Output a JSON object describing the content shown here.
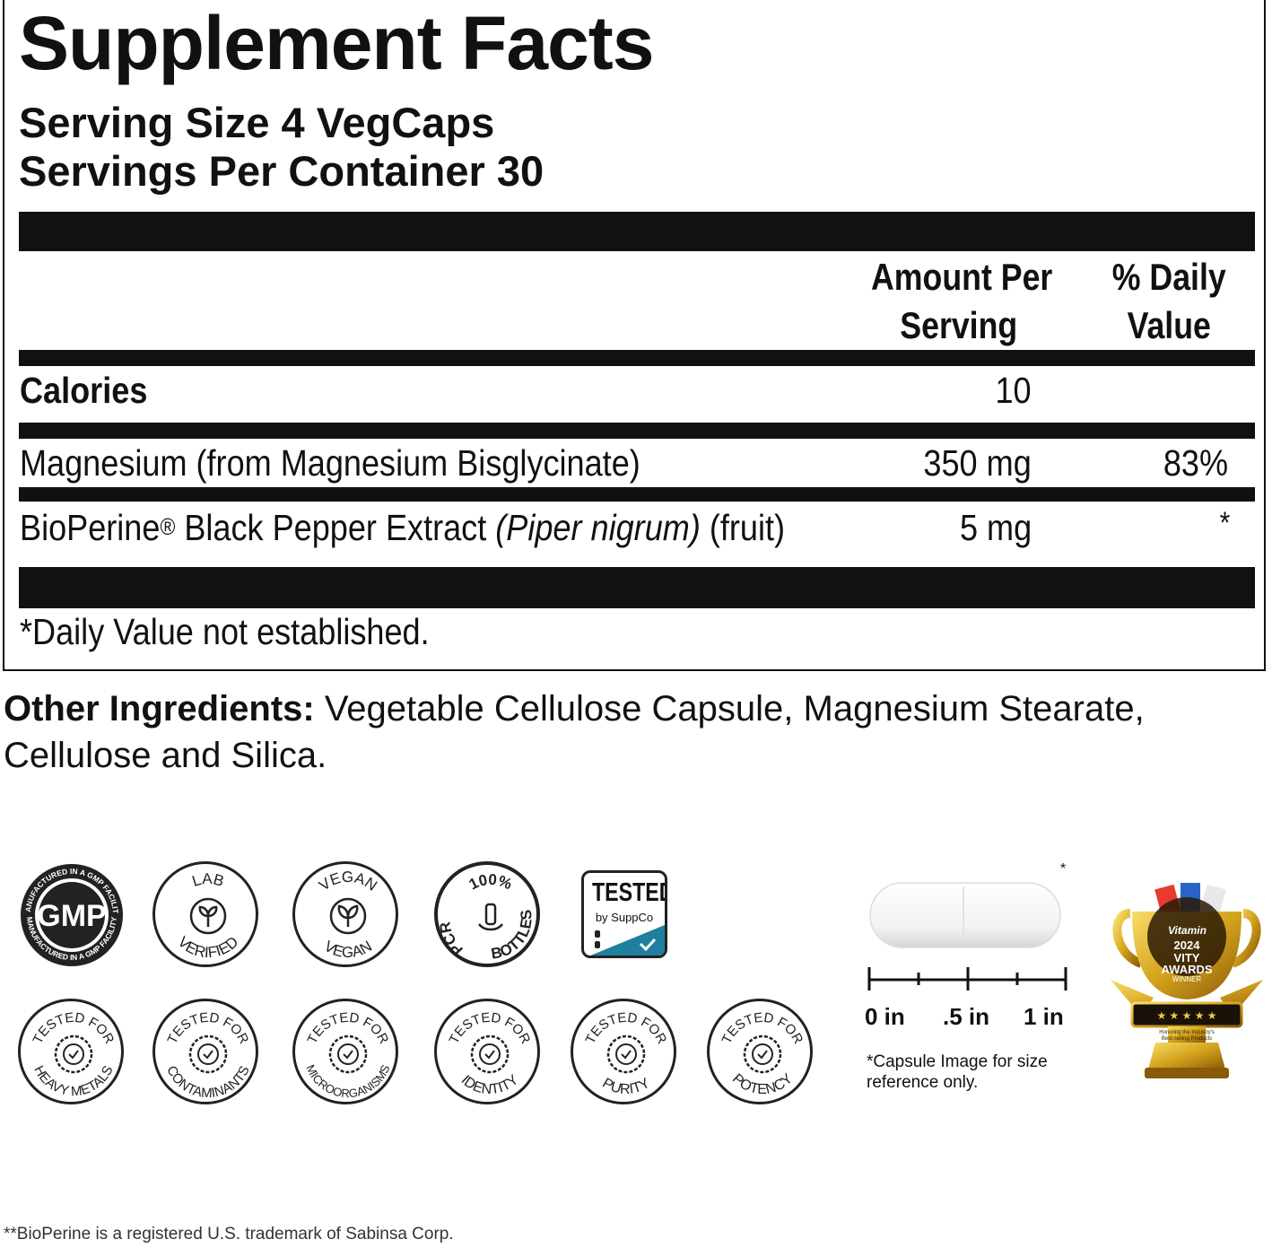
{
  "facts": {
    "title": "Supplement Facts",
    "serving_size": "Serving Size 4 VegCaps",
    "servings_per_container": "Servings Per Container 30",
    "col_amount_line1": "Amount Per",
    "col_amount_line2": "Serving",
    "col_dv_line1": "% Daily",
    "col_dv_line2": "Value",
    "rows": [
      {
        "name": "Calories",
        "amount": "10",
        "dv": ""
      },
      {
        "name": "Magnesium (from Magnesium Bisglycinate)",
        "amount": "350 mg",
        "dv": "83%"
      },
      {
        "name_prefix": "BioPerine",
        "reg_mark": "®",
        "name_mid": " Black Pepper Extract ",
        "name_italic": "(Piper nigrum)",
        "name_suffix": " (fruit)",
        "amount": "5 mg",
        "dv": "*"
      }
    ],
    "footnote": "*Daily Value not established."
  },
  "other_ingredients": {
    "label": "Other Ingredients:",
    "text": " Vegetable Cellulose Capsule, Magnesium Stearate, Cellulose and Silica."
  },
  "badges": {
    "gmp": {
      "center": "GMP",
      "ring_top": "MANUFACTURED IN A GMP FACILITY",
      "ring_bottom": "MANUFACTURED IN A GMP FACILITY",
      "icon": "gmp-seal-icon"
    },
    "lab": {
      "top": "LAB",
      "bottom": "VERIFIED",
      "icon": "sprout-icon"
    },
    "vegan": {
      "top": "VEGAN",
      "bottom": "VEGAN",
      "icon": "leaf-icon"
    },
    "pcr": {
      "top": "100%",
      "left": "PCR",
      "right": "BOTTLES",
      "icon": "bottle-hand-icon"
    },
    "suppco": {
      "line1": "TESTED",
      "line2": "by SuppCo",
      "icon": "check-icon"
    },
    "tested": [
      {
        "top": "TESTED FOR",
        "bottom": "HEAVY METALS"
      },
      {
        "top": "TESTED FOR",
        "bottom": "CONTAMINANTS"
      },
      {
        "top": "TESTED FOR",
        "bottom": "MICROORGANISMS"
      },
      {
        "top": "TESTED FOR",
        "bottom": "IDENTITY"
      },
      {
        "top": "TESTED FOR",
        "bottom": "PURITY"
      },
      {
        "top": "TESTED FOR",
        "bottom": "POTENCY"
      }
    ]
  },
  "capsule": {
    "asterisk": "*",
    "ruler_labels": [
      "0 in",
      ".5 in",
      "1 in"
    ],
    "note": "*Capsule Image for size reference only."
  },
  "award": {
    "brand": "Vitamin",
    "year": "2024",
    "line1": "VITY",
    "line2": "AWARDS",
    "line3": "WINNER",
    "small": "Honoring the Industry's Best-selling Products",
    "icon": "trophy-icon"
  },
  "footer": "**BioPerine is a registered U.S. trademark of Sabinsa Corp.",
  "colors": {
    "ink": "#111111",
    "suppco_teal": "#1f7f9e",
    "gold": "#d4a21c"
  }
}
